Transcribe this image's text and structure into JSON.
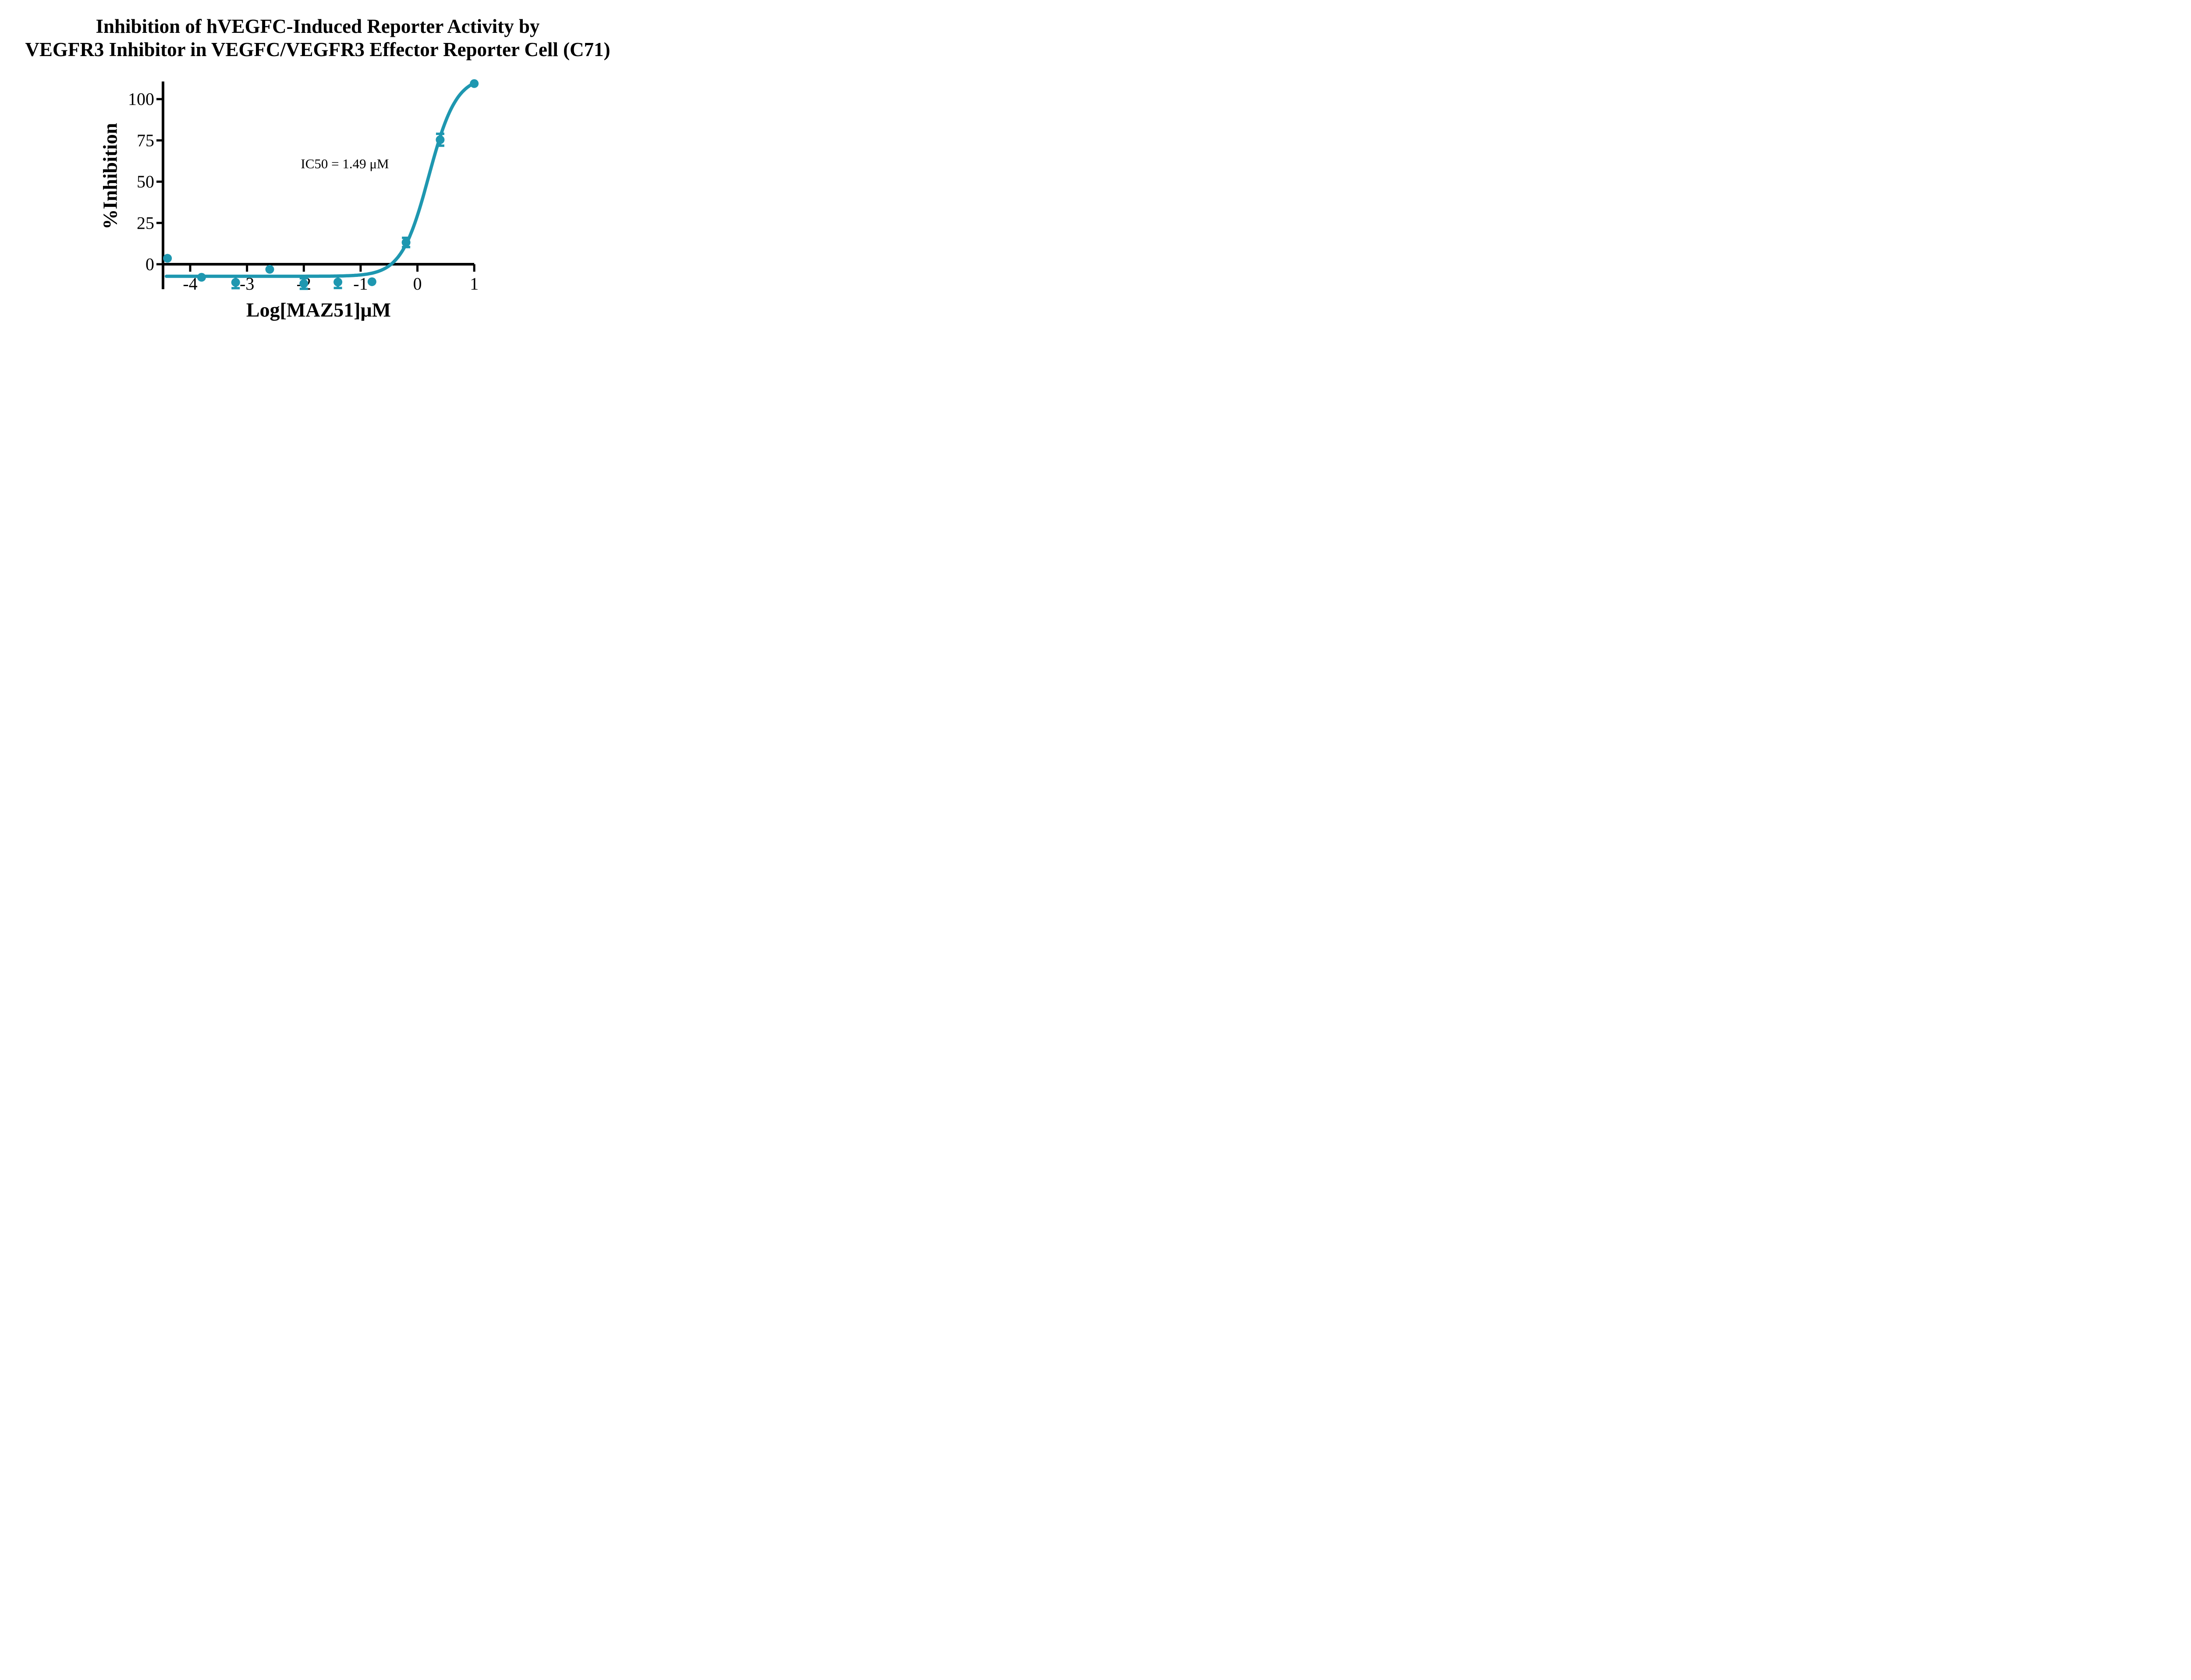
{
  "figure": {
    "background_color": "#FFFFFF",
    "text_color": "#000000"
  },
  "chart_data": {
    "type": "scatter",
    "title": "Inhibition of hVEGFC-Induced Reporter Activity by VEGFR3 Inhibitor in VEGFC/VEGFR3 Effector Reporter Cell (C71)",
    "title_lines": [
      "Inhibition of hVEGFC-Induced Reporter Activity by",
      "VEGFR3 Inhibitor in VEGFC/VEGFR3 Effector Reporter Cell (C71)"
    ],
    "xlabel": "Log[MAZ51]μM",
    "ylabel": "%Inhibition",
    "x_ticks": [
      -4,
      -3,
      -2,
      -1,
      0,
      1
    ],
    "y_ticks": [
      0,
      25,
      50,
      75,
      100
    ],
    "xlim": [
      -4.48,
      1.0
    ],
    "ylim": [
      -15,
      111.5
    ],
    "grid": false,
    "legend": "none",
    "axis_color": "#000000",
    "series": [
      {
        "name": "MAZ51",
        "color": "#1E97B0",
        "marker": "circle",
        "points": [
          {
            "x": -4.4,
            "y": 3.6
          },
          {
            "x": -3.8,
            "y": -7.9
          },
          {
            "x": -3.2,
            "y": -11.0,
            "err": 3.5
          },
          {
            "x": -2.6,
            "y": -3.1
          },
          {
            "x": -2.0,
            "y": -11.7,
            "err": 3.2
          },
          {
            "x": -1.4,
            "y": -10.8,
            "err": 3.6
          },
          {
            "x": -0.8,
            "y": -10.6
          },
          {
            "x": -0.2,
            "y": 13.2,
            "err": 2.8
          },
          {
            "x": 0.4,
            "y": 75.4,
            "err": 3.6
          },
          {
            "x": 1.0,
            "y": 109.4
          }
        ]
      }
    ],
    "fit_curve": {
      "model": "four_parameter_logistic",
      "bottom": -7.3,
      "top": 114,
      "logIC50": 0.2,
      "hill": 1.8,
      "x_start": -4.42,
      "x_end": 1.0
    },
    "annotations": [
      {
        "text": "IC50 = 1.49 μM",
        "x": -1.28,
        "y": 61
      }
    ]
  }
}
